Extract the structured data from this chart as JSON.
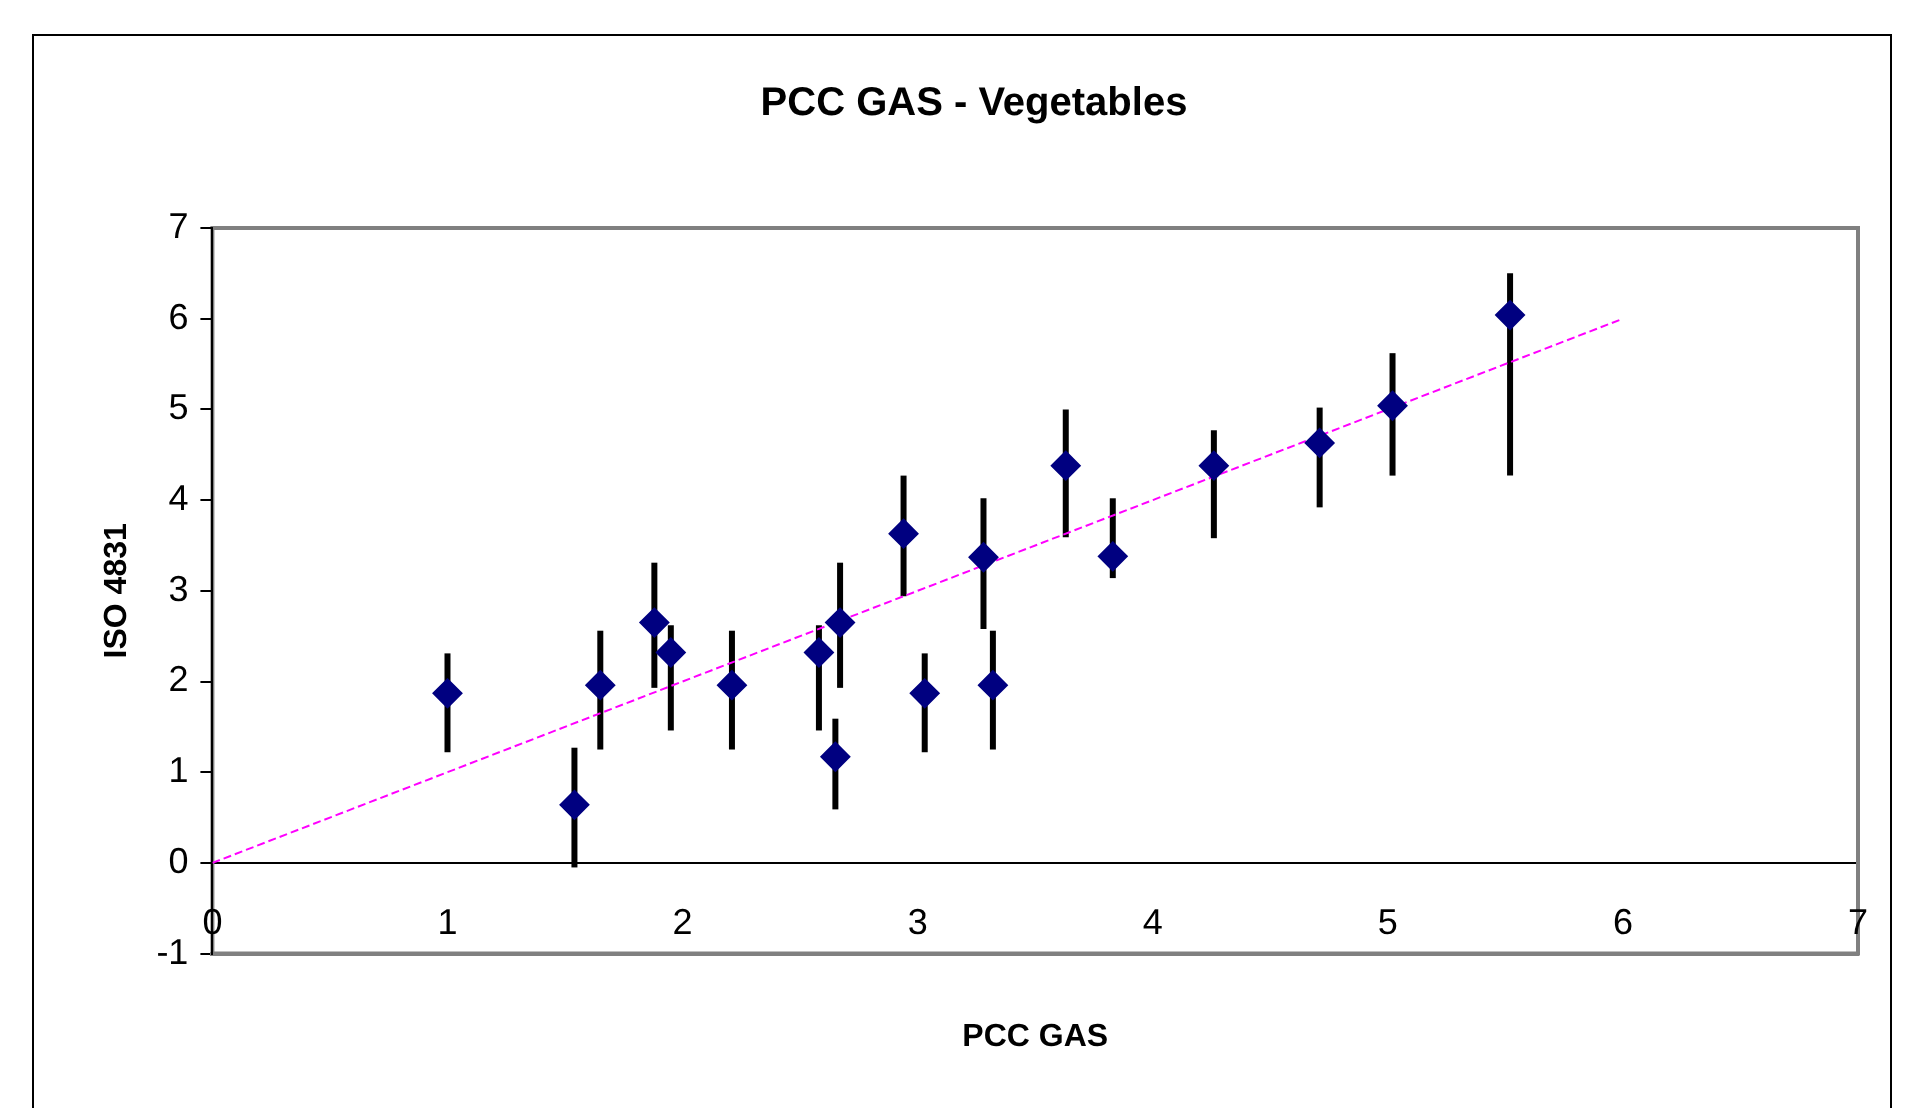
{
  "chart_data": {
    "type": "scatter",
    "title": "PCC GAS - Vegetables",
    "xlabel": "PCC GAS",
    "ylabel": "ISO 4831",
    "xlim": [
      0,
      7
    ],
    "xticks": [
      0,
      1,
      2,
      3,
      4,
      5,
      6,
      7
    ],
    "ylim": [
      -1,
      7
    ],
    "yticks": [
      -1,
      0,
      1,
      2,
      3,
      4,
      5,
      6,
      7
    ],
    "grid": false,
    "legend": false,
    "marker": "diamond",
    "ref_lines": [
      {
        "axis": "y",
        "value": 0,
        "color": "#000000",
        "line_style": "solid"
      }
    ],
    "series": [
      {
        "type": "scatter",
        "color": "#000080",
        "x": [
          1.0,
          1.54,
          1.65,
          1.88,
          1.95,
          2.21,
          2.58,
          2.65,
          2.67,
          2.94,
          3.03,
          3.28,
          3.32,
          3.63,
          3.83,
          4.26,
          4.71,
          5.02,
          5.52
        ],
        "values": [
          1.87,
          0.64,
          1.96,
          2.65,
          2.32,
          1.96,
          2.32,
          1.17,
          2.65,
          3.63,
          1.87,
          3.37,
          1.96,
          4.38,
          3.38,
          4.38,
          4.63,
          5.04,
          6.04
        ],
        "errors": [
          [
            1.22,
            2.31
          ],
          [
            -0.05,
            1.27
          ],
          [
            1.25,
            2.56
          ],
          [
            1.93,
            3.31
          ],
          [
            1.46,
            2.62
          ],
          [
            1.25,
            2.56
          ],
          [
            1.46,
            2.62
          ],
          [
            0.59,
            1.59
          ],
          [
            1.93,
            3.31
          ],
          [
            2.94,
            4.27
          ],
          [
            1.22,
            2.31
          ],
          [
            2.58,
            4.02
          ],
          [
            1.25,
            2.56
          ],
          [
            3.59,
            5.0
          ],
          [
            3.14,
            4.02
          ],
          [
            3.58,
            4.77
          ],
          [
            3.92,
            5.02
          ],
          [
            4.27,
            5.62
          ],
          [
            4.27,
            6.5
          ]
        ]
      },
      {
        "type": "line",
        "color": "#ff00ff",
        "line_style": "dashed",
        "marker": "none",
        "x": [
          0,
          6
        ],
        "values": [
          0,
          6
        ]
      }
    ]
  }
}
